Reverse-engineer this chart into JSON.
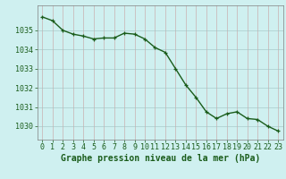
{
  "x": [
    0,
    1,
    2,
    3,
    4,
    5,
    6,
    7,
    8,
    9,
    10,
    11,
    12,
    13,
    14,
    15,
    16,
    17,
    18,
    19,
    20,
    21,
    22,
    23
  ],
  "y": [
    1035.7,
    1035.5,
    1035.0,
    1034.8,
    1034.7,
    1034.55,
    1034.6,
    1034.6,
    1034.85,
    1034.8,
    1034.55,
    1034.1,
    1033.85,
    1033.0,
    1032.15,
    1031.5,
    1030.75,
    1030.4,
    1030.65,
    1030.75,
    1030.4,
    1030.35,
    1030.0,
    1029.75
  ],
  "bg_color": "#cff0f0",
  "line_color": "#1a5c1a",
  "marker_color": "#1a5c1a",
  "grid_color_v": "#c8a0a0",
  "grid_color_h": "#a0c0c0",
  "ylabel_ticks": [
    1030,
    1031,
    1032,
    1033,
    1034,
    1035
  ],
  "ylim": [
    1029.3,
    1036.3
  ],
  "xlim": [
    -0.5,
    23.5
  ],
  "xlabel": "Graphe pression niveau de la mer (hPa)",
  "xlabel_fontsize": 7,
  "tick_fontsize": 6,
  "line_width": 1.0,
  "marker_size": 3,
  "marker_style": "+"
}
